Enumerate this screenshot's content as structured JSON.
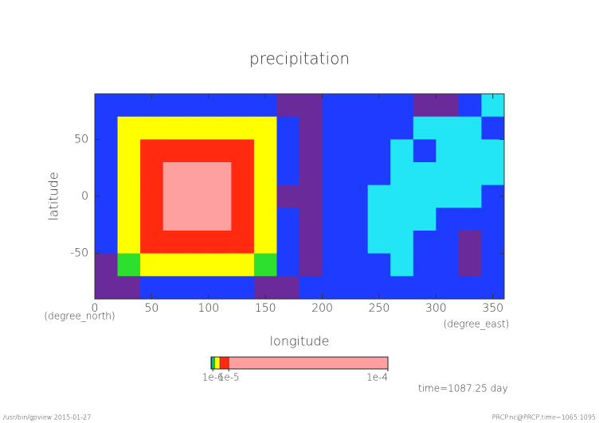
{
  "chart_data": {
    "type": "contour",
    "title": "precipitation",
    "x_label": "longitude",
    "y_label": "latitude",
    "x_unit": "(degree_east)",
    "y_unit": "(degree_north)",
    "xlim": [
      0,
      360
    ],
    "ylim": [
      -90,
      90
    ],
    "xticks": [
      0,
      50,
      100,
      150,
      200,
      250,
      300,
      350
    ],
    "yticks": [
      -50,
      0,
      50
    ],
    "x": [
      10,
      30,
      50,
      70,
      90,
      110,
      130,
      150,
      170,
      190,
      210,
      230,
      250,
      270,
      290,
      310,
      330,
      350
    ],
    "y": [
      80,
      60,
      40,
      20,
      0,
      -20,
      -40,
      -60,
      -80
    ],
    "z": [
      [
        2e-07,
        2e-07,
        2e-07,
        2e-07,
        2e-07,
        2e-07,
        2e-07,
        2e-07,
        5e-08,
        5e-08,
        2e-07,
        2e-07,
        2e-07,
        2e-07,
        5e-08,
        5e-08,
        2e-07,
        6e-07
      ],
      [
        2e-07,
        3e-06,
        3e-06,
        3e-06,
        3e-06,
        3e-06,
        3e-06,
        3e-06,
        2e-07,
        5e-08,
        2e-07,
        2e-07,
        2e-07,
        2e-07,
        6e-07,
        6e-07,
        6e-07,
        2e-07
      ],
      [
        2e-07,
        3e-06,
        8e-06,
        8e-06,
        8e-06,
        8e-06,
        8e-06,
        3e-06,
        2e-07,
        5e-08,
        2e-07,
        2e-07,
        2e-07,
        6e-07,
        2e-07,
        6e-07,
        6e-07,
        6e-07
      ],
      [
        2e-07,
        3e-06,
        8e-06,
        3e-05,
        3e-05,
        3e-05,
        8e-06,
        3e-06,
        2e-07,
        5e-08,
        2e-07,
        2e-07,
        2e-07,
        6e-07,
        6e-07,
        6e-07,
        6e-07,
        6e-07
      ],
      [
        2e-07,
        3e-06,
        8e-06,
        3e-05,
        3e-05,
        3e-05,
        8e-06,
        3e-06,
        5e-08,
        5e-08,
        2e-07,
        2e-07,
        6e-07,
        6e-07,
        6e-07,
        6e-07,
        6e-07,
        2e-07
      ],
      [
        2e-07,
        3e-06,
        8e-06,
        3e-05,
        3e-05,
        3e-05,
        8e-06,
        3e-06,
        2e-07,
        5e-08,
        2e-07,
        2e-07,
        6e-07,
        6e-07,
        6e-07,
        2e-07,
        2e-07,
        2e-07
      ],
      [
        2e-07,
        3e-06,
        8e-06,
        8e-06,
        8e-06,
        8e-06,
        8e-06,
        3e-06,
        2e-07,
        5e-08,
        2e-07,
        2e-07,
        6e-07,
        6e-07,
        2e-07,
        2e-07,
        5e-08,
        2e-07
      ],
      [
        5e-08,
        1.5e-06,
        3e-06,
        3e-06,
        3e-06,
        3e-06,
        3e-06,
        1.5e-06,
        2e-07,
        5e-08,
        2e-07,
        2e-07,
        2e-07,
        6e-07,
        2e-07,
        2e-07,
        5e-08,
        2e-07
      ],
      [
        5e-08,
        5e-08,
        2e-07,
        2e-07,
        2e-07,
        2e-07,
        2e-07,
        5e-08,
        5e-08,
        2e-07,
        2e-07,
        2e-07,
        2e-07,
        2e-07,
        2e-07,
        2e-07,
        2e-07,
        2e-07
      ]
    ],
    "levels": [
      1e-07,
      4e-07,
      1e-06,
      2e-06,
      5e-06,
      1e-05
    ],
    "colors": [
      "#6a2a9a",
      "#1e3cff",
      "#23e6f5",
      "#2ee02e",
      "#ffff00",
      "#ff2a10",
      "#ffa0a0"
    ],
    "clim": [
      0,
      0.0001
    ],
    "colorbar_ticks": [
      {
        "value": 1e-06,
        "label": "1e-6"
      },
      {
        "value": 1e-05,
        "label": "1e-5"
      },
      {
        "value": 0.0001,
        "label": "1e-4"
      }
    ],
    "annotation": "time=1087.25 day",
    "footer_left": "/usr/bin/gpview  2015-01-27",
    "footer_right": "PRCP.nc@PRCP,time=1065:1095"
  }
}
